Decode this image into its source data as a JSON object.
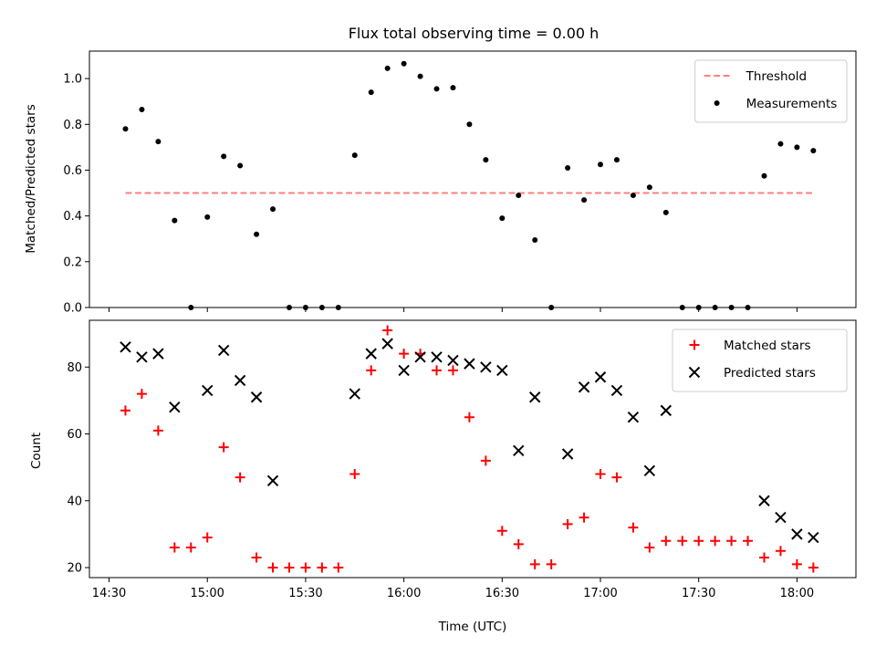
{
  "chart_data": [
    {
      "type": "scatter",
      "title": "Flux total observing time = 0.00 h",
      "xlabel": "",
      "ylabel": "Matched/Predicted stars",
      "xlim": [
        "14:24",
        "18:18"
      ],
      "ylim": [
        0,
        1.12
      ],
      "xticks": [
        "14:30",
        "15:00",
        "15:30",
        "16:00",
        "16:30",
        "17:00",
        "17:30",
        "18:00"
      ],
      "yticks": [
        0.0,
        0.2,
        0.4,
        0.6,
        0.8,
        1.0
      ],
      "ytick_labels": [
        "0.0",
        "0.2",
        "0.4",
        "0.6",
        "0.8",
        "1.0"
      ],
      "legend_position": "top-right",
      "threshold": {
        "name": "Threshold",
        "y": 0.5,
        "x_start": "14:35",
        "x_end": "18:05",
        "color": "#ff8080",
        "style": "dashed"
      },
      "series": [
        {
          "name": "Measurements",
          "marker": "dot",
          "color": "#000000",
          "x": [
            "14:35",
            "14:40",
            "14:45",
            "14:50",
            "14:55",
            "15:00",
            "15:05",
            "15:10",
            "15:15",
            "15:20",
            "15:25",
            "15:30",
            "15:35",
            "15:40",
            "15:45",
            "15:50",
            "15:55",
            "16:00",
            "16:05",
            "16:10",
            "16:15",
            "16:20",
            "16:25",
            "16:30",
            "16:35",
            "16:40",
            "16:45",
            "16:50",
            "16:55",
            "17:00",
            "17:05",
            "17:10",
            "17:15",
            "17:20",
            "17:25",
            "17:30",
            "17:35",
            "17:40",
            "17:45",
            "17:50",
            "17:55",
            "18:00",
            "18:05"
          ],
          "y": [
            0.78,
            0.865,
            0.725,
            0.38,
            0.0,
            0.395,
            0.66,
            0.62,
            0.32,
            0.43,
            0.0,
            0.0,
            0.0,
            0.0,
            0.665,
            0.94,
            1.045,
            1.065,
            1.01,
            0.955,
            0.96,
            0.8,
            0.645,
            0.39,
            0.49,
            0.295,
            0.0,
            0.61,
            0.47,
            0.625,
            0.645,
            0.49,
            0.525,
            0.415,
            0.0,
            0.0,
            0.0,
            0.0,
            0.0,
            0.575,
            0.715,
            0.7,
            0.685
          ]
        }
      ]
    },
    {
      "type": "scatter",
      "title": "",
      "xlabel": "Time (UTC)",
      "ylabel": "Count",
      "xlim": [
        "14:24",
        "18:18"
      ],
      "ylim": [
        17,
        94
      ],
      "xticks": [
        "14:30",
        "15:00",
        "15:30",
        "16:00",
        "16:30",
        "17:00",
        "17:30",
        "18:00"
      ],
      "yticks": [
        20,
        40,
        60,
        80
      ],
      "ytick_labels": [
        "20",
        "40",
        "60",
        "80"
      ],
      "legend_position": "top-right",
      "series": [
        {
          "name": "Matched stars",
          "marker": "plus",
          "color": "#ff0000",
          "x": [
            "14:35",
            "14:40",
            "14:45",
            "14:50",
            "14:55",
            "15:00",
            "15:05",
            "15:10",
            "15:15",
            "15:20",
            "15:25",
            "15:30",
            "15:35",
            "15:40",
            "15:45",
            "15:50",
            "15:55",
            "16:00",
            "16:05",
            "16:10",
            "16:15",
            "16:20",
            "16:25",
            "16:30",
            "16:35",
            "16:40",
            "16:45",
            "16:50",
            "16:55",
            "17:00",
            "17:05",
            "17:10",
            "17:15",
            "17:20",
            "17:25",
            "17:30",
            "17:35",
            "17:40",
            "17:45",
            "17:50",
            "17:55",
            "18:00",
            "18:05"
          ],
          "y": [
            67,
            72,
            61,
            26,
            26,
            29,
            56,
            47,
            23,
            20,
            20,
            20,
            20,
            20,
            48,
            79,
            91,
            84,
            84,
            79,
            79,
            65,
            52,
            31,
            27,
            21,
            21,
            33,
            35,
            48,
            47,
            32,
            26,
            28,
            28,
            28,
            28,
            28,
            28,
            23,
            25,
            21,
            20
          ]
        },
        {
          "name": "Predicted stars",
          "marker": "x",
          "color": "#000000",
          "x": [
            "14:35",
            "14:40",
            "14:45",
            "14:50",
            "15:00",
            "15:05",
            "15:10",
            "15:15",
            "15:20",
            "15:45",
            "15:50",
            "15:55",
            "16:00",
            "16:05",
            "16:10",
            "16:15",
            "16:20",
            "16:25",
            "16:30",
            "16:35",
            "16:40",
            "16:50",
            "16:55",
            "17:00",
            "17:05",
            "17:10",
            "17:15",
            "17:20",
            "17:50",
            "17:55",
            "18:00",
            "18:05"
          ],
          "y": [
            86,
            83,
            84,
            68,
            73,
            85,
            76,
            71,
            46,
            72,
            84,
            87,
            79,
            83,
            83,
            82,
            81,
            80,
            79,
            55,
            71,
            54,
            74,
            77,
            73,
            65,
            49,
            67,
            40,
            35,
            30,
            29
          ]
        }
      ]
    }
  ]
}
